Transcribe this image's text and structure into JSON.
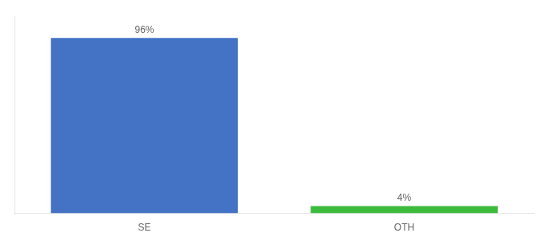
{
  "chart_data": {
    "type": "bar",
    "categories": [
      "SE",
      "OTH"
    ],
    "values": [
      96,
      4
    ],
    "value_labels": [
      "96%",
      "4%"
    ],
    "colors": [
      "#4472c4",
      "#3dbb3d"
    ],
    "ylim": [
      0,
      108
    ],
    "grid": false,
    "data_labels": true,
    "tick_labels": "x"
  }
}
